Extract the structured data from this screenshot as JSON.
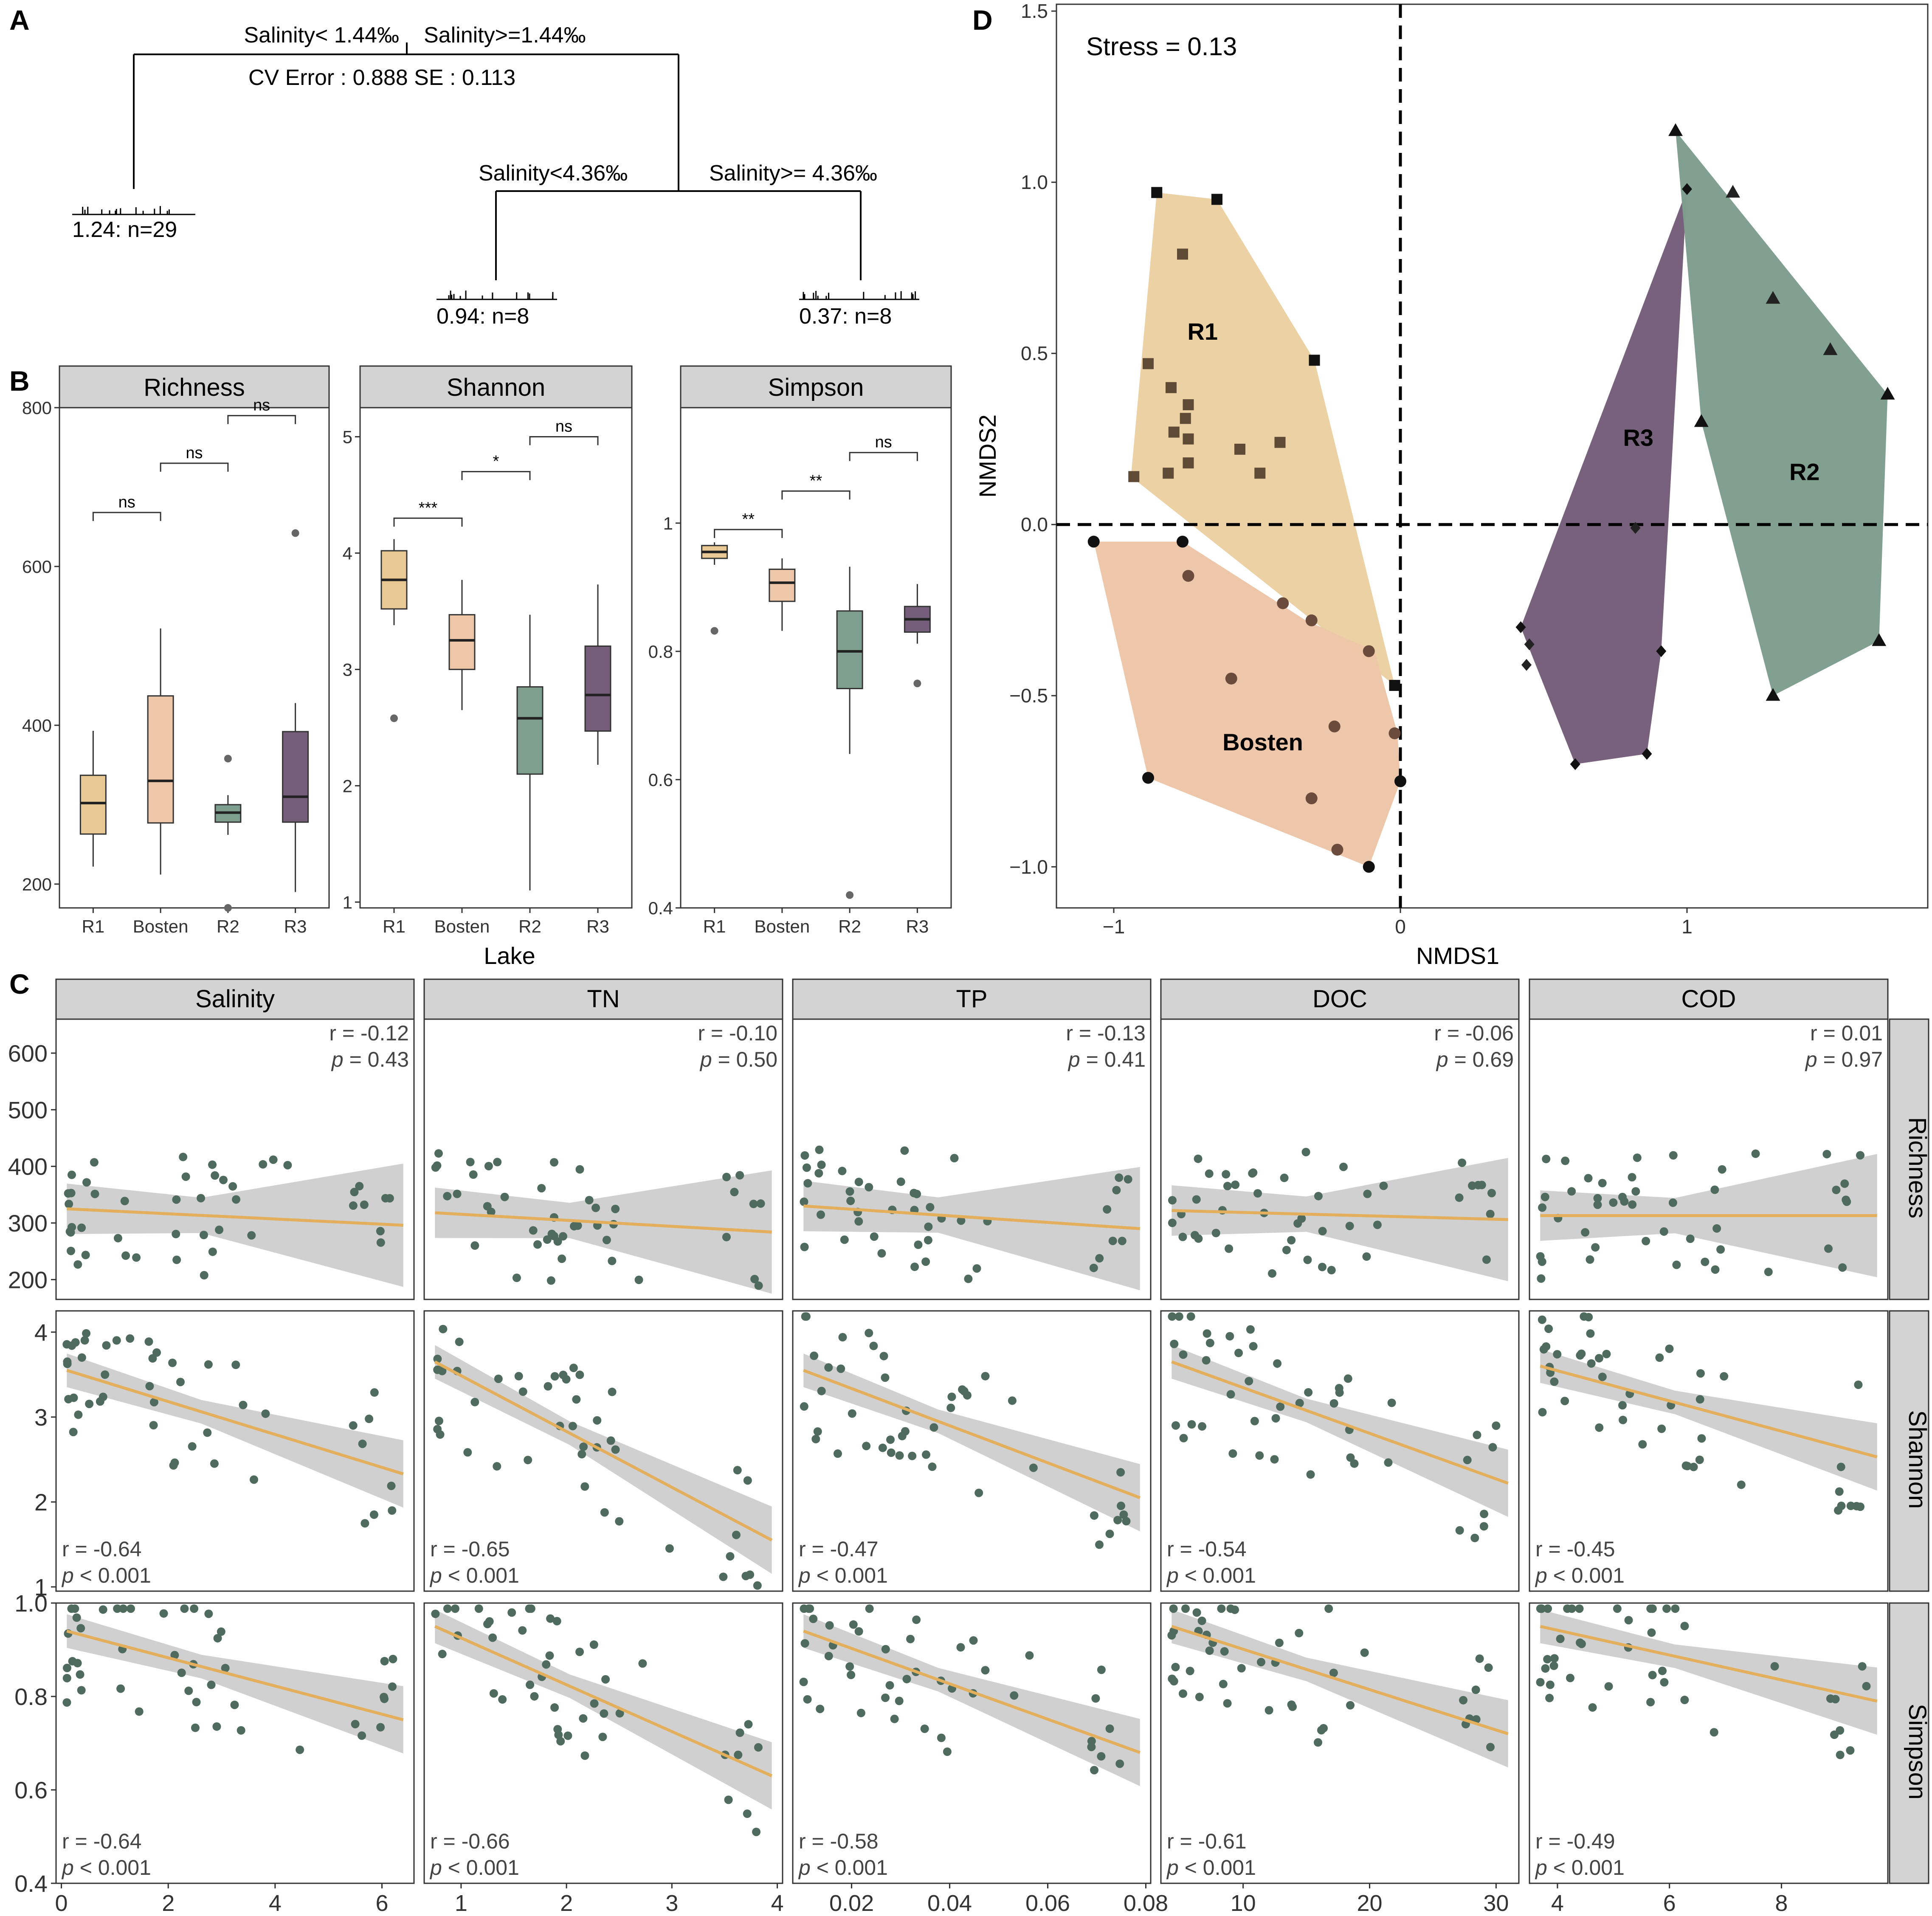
{
  "colors": {
    "R1": "#E8C994",
    "Bosten": "#EEC6A8",
    "R2": "#7E9E8E",
    "R3": "#755E7A",
    "dot": "#4F6B5D",
    "fit": "#E3AF5C",
    "band": "#CBCBCB",
    "strip": "#D3D3D3"
  },
  "labels": {
    "A": "A",
    "B": "B",
    "C": "C",
    "D": "D"
  },
  "tree": {
    "split1_left": "Salinity< 1.44‰",
    "split1_right": "Salinity>=1.44‰",
    "cv": "CV Error :  0.888    SE :  0.113",
    "split2_left": "Salinity<4.36‰",
    "split2_right": "Salinity>= 4.36‰",
    "leaf1": "1.24: n=29",
    "leaf2": "0.94: n=8",
    "leaf3": "0.37: n=8"
  },
  "chart_data": [
    {
      "type": "box",
      "id": "B",
      "xlabel": "Lake",
      "categories": [
        "R1",
        "Bosten",
        "R2",
        "R3"
      ],
      "panels": [
        {
          "title": "Richness",
          "ylim": [
            170,
            800
          ],
          "ticks": [
            200,
            400,
            600,
            800
          ],
          "boxes": [
            {
              "min": 222,
              "q1": 263,
              "median": 302,
              "q3": 337,
              "max": 393,
              "out": []
            },
            {
              "min": 212,
              "q1": 277,
              "median": 330,
              "q3": 437,
              "max": 522,
              "out": []
            },
            {
              "min": 262,
              "q1": 278,
              "median": 290,
              "q3": 300,
              "max": 312,
              "out": [
                358,
                170
              ]
            },
            {
              "min": 190,
              "q1": 278,
              "median": 310,
              "q3": 392,
              "max": 428,
              "out": [
                642
              ]
            }
          ],
          "brackets": [
            {
              "a": 0,
              "b": 1,
              "y": 668,
              "label": "ns"
            },
            {
              "a": 1,
              "b": 2,
              "y": 730,
              "label": "ns"
            },
            {
              "a": 2,
              "b": 3,
              "y": 790,
              "label": "ns"
            }
          ]
        },
        {
          "title": "Shannon",
          "ylim": [
            0.95,
            5.25
          ],
          "ticks": [
            1,
            2,
            3,
            4,
            5
          ],
          "boxes": [
            {
              "min": 3.38,
              "q1": 3.52,
              "median": 3.77,
              "q3": 4.02,
              "max": 4.12,
              "out": [
                2.58
              ]
            },
            {
              "min": 2.65,
              "q1": 3.0,
              "median": 3.25,
              "q3": 3.47,
              "max": 3.77,
              "out": []
            },
            {
              "min": 1.1,
              "q1": 2.1,
              "median": 2.58,
              "q3": 2.85,
              "max": 3.47,
              "out": []
            },
            {
              "min": 2.18,
              "q1": 2.47,
              "median": 2.78,
              "q3": 3.2,
              "max": 3.73,
              "out": []
            }
          ],
          "brackets": [
            {
              "a": 0,
              "b": 1,
              "y": 4.3,
              "label": "***"
            },
            {
              "a": 1,
              "b": 2,
              "y": 4.7,
              "label": "*"
            },
            {
              "a": 2,
              "b": 3,
              "y": 5.0,
              "label": "ns"
            }
          ]
        },
        {
          "title": "Simpson",
          "ylim": [
            0.4,
            1.18
          ],
          "ticks": [
            0.4,
            0.6,
            0.8,
            1.0
          ],
          "boxes": [
            {
              "min": 0.935,
              "q1": 0.945,
              "median": 0.955,
              "q3": 0.965,
              "max": 0.97,
              "out": [
                0.832
              ]
            },
            {
              "min": 0.832,
              "q1": 0.878,
              "median": 0.907,
              "q3": 0.928,
              "max": 0.945,
              "out": []
            },
            {
              "min": 0.64,
              "q1": 0.742,
              "median": 0.8,
              "q3": 0.863,
              "max": 0.932,
              "out": [
                0.42
              ]
            },
            {
              "min": 0.812,
              "q1": 0.83,
              "median": 0.85,
              "q3": 0.87,
              "max": 0.905,
              "out": [
                0.75
              ]
            }
          ],
          "brackets": [
            {
              "a": 0,
              "b": 1,
              "y": 0.99,
              "label": "**"
            },
            {
              "a": 1,
              "b": 2,
              "y": 1.05,
              "label": "**"
            },
            {
              "a": 2,
              "b": 3,
              "y": 1.11,
              "label": "ns"
            }
          ]
        }
      ]
    },
    {
      "type": "scatter",
      "id": "D",
      "title": "Stress = 0.13",
      "xlabel": "NMDS1",
      "ylabel": "NMDS2",
      "xlim": [
        -1.2,
        1.84
      ],
      "ylim": [
        -1.12,
        1.52
      ],
      "xticks": [
        -1,
        0,
        1
      ],
      "yticks": [
        -1.0,
        -0.5,
        0.0,
        0.5,
        1.0,
        1.5
      ],
      "groups": [
        {
          "name": "R1",
          "shape": "square",
          "hull": [
            [
              -0.85,
              0.97
            ],
            [
              -0.64,
              0.95
            ],
            [
              -0.3,
              0.48
            ],
            [
              -0.02,
              -0.47
            ],
            [
              -0.94,
              0.14
            ]
          ],
          "points": [
            [
              -0.85,
              0.97
            ],
            [
              -0.64,
              0.95
            ],
            [
              -0.76,
              0.79
            ],
            [
              -0.3,
              0.48
            ],
            [
              -0.88,
              0.47
            ],
            [
              -0.8,
              0.4
            ],
            [
              -0.74,
              0.35
            ],
            [
              -0.75,
              0.31
            ],
            [
              -0.79,
              0.27
            ],
            [
              -0.74,
              0.25
            ],
            [
              -0.56,
              0.22
            ],
            [
              -0.42,
              0.24
            ],
            [
              -0.81,
              0.15
            ],
            [
              -0.49,
              0.15
            ],
            [
              -0.74,
              0.18
            ],
            [
              -0.93,
              0.14
            ],
            [
              -0.02,
              -0.47
            ]
          ]
        },
        {
          "name": "Bosten",
          "shape": "circle",
          "hull": [
            [
              -1.07,
              -0.05
            ],
            [
              -0.76,
              -0.05
            ],
            [
              -0.33,
              -0.28
            ],
            [
              -0.09,
              -0.37
            ],
            [
              -0.01,
              -0.61
            ],
            [
              0.0,
              -0.75
            ],
            [
              -0.11,
              -1.0
            ],
            [
              -0.88,
              -0.74
            ]
          ],
          "points": [
            [
              -1.07,
              -0.05
            ],
            [
              -0.76,
              -0.05
            ],
            [
              -0.74,
              -0.15
            ],
            [
              -0.41,
              -0.23
            ],
            [
              -0.31,
              -0.28
            ],
            [
              -0.11,
              -0.37
            ],
            [
              -0.59,
              -0.45
            ],
            [
              -0.23,
              -0.59
            ],
            [
              -0.02,
              -0.61
            ],
            [
              0.0,
              -0.75
            ],
            [
              -0.31,
              -0.8
            ],
            [
              -0.22,
              -0.95
            ],
            [
              -0.11,
              -1.0
            ],
            [
              -0.88,
              -0.74
            ]
          ]
        },
        {
          "name": "R3",
          "shape": "diamond",
          "hull": [
            [
              1.0,
              0.98
            ],
            [
              0.91,
              -0.37
            ],
            [
              0.86,
              -0.67
            ],
            [
              0.61,
              -0.7
            ],
            [
              0.42,
              -0.3
            ]
          ],
          "points": [
            [
              1.0,
              0.98
            ],
            [
              0.82,
              -0.01
            ],
            [
              0.91,
              -0.37
            ],
            [
              0.86,
              -0.67
            ],
            [
              0.61,
              -0.7
            ],
            [
              0.42,
              -0.3
            ],
            [
              0.45,
              -0.35
            ],
            [
              0.44,
              -0.41
            ]
          ]
        },
        {
          "name": "R2",
          "shape": "triangle",
          "hull": [
            [
              0.96,
              1.15
            ],
            [
              1.7,
              0.38
            ],
            [
              1.67,
              -0.34
            ],
            [
              1.3,
              -0.5
            ],
            [
              1.05,
              0.3
            ]
          ],
          "points": [
            [
              0.96,
              1.15
            ],
            [
              1.16,
              0.97
            ],
            [
              1.3,
              0.66
            ],
            [
              1.5,
              0.51
            ],
            [
              1.7,
              0.38
            ],
            [
              1.05,
              0.3
            ],
            [
              1.67,
              -0.34
            ],
            [
              1.3,
              -0.5
            ]
          ]
        }
      ]
    },
    {
      "type": "scatter-regression",
      "id": "C",
      "columns": [
        {
          "title": "Salinity",
          "xlim": [
            -0.1,
            6.6
          ],
          "xticks": [
            0,
            2,
            4,
            6
          ]
        },
        {
          "title": "TN",
          "xlim": [
            0.65,
            4.05
          ],
          "xticks": [
            1,
            2,
            3,
            4
          ]
        },
        {
          "title": "TP",
          "xlim": [
            0.008,
            0.081
          ],
          "xticks": [
            0.02,
            0.04,
            0.06,
            0.08
          ]
        },
        {
          "title": "DOC",
          "xlim": [
            3.5,
            31.8
          ],
          "xticks": [
            10,
            20,
            30
          ]
        },
        {
          "title": "COD",
          "xlim": [
            3.5,
            9.9
          ],
          "xticks": [
            4,
            6,
            8
          ]
        }
      ],
      "rows": [
        {
          "title": "Richness",
          "ylim": [
            165,
            660
          ],
          "yticks": [
            200,
            300,
            400,
            500,
            600
          ],
          "corner": "top-right",
          "stats": [
            {
              "r": "r = -0.12",
              "p": " = 0.43"
            },
            {
              "r": "r = -0.10",
              "p": " = 0.50"
            },
            {
              "r": "r = -0.13",
              "p": " = 0.41"
            },
            {
              "r": "r = -0.06",
              "p": " = 0.69"
            },
            {
              "r": "r = 0.01",
              "p": " = 0.97"
            }
          ],
          "fit": [
            [
              325,
              296
            ],
            [
              318,
              284
            ],
            [
              330,
              290
            ],
            [
              322,
              306
            ],
            [
              313,
              313
            ]
          ]
        },
        {
          "title": "Shannon",
          "ylim": [
            0.95,
            4.25
          ],
          "yticks": [
            1,
            2,
            3,
            4
          ],
          "corner": "bottom-left",
          "stats": [
            {
              "r": "r = -0.64",
              "p": " < 0.001"
            },
            {
              "r": "r = -0.65",
              "p": " < 0.001"
            },
            {
              "r": "r = -0.47",
              "p": " < 0.001"
            },
            {
              "r": "r = -0.54",
              "p": " < 0.001"
            },
            {
              "r": "r = -0.45",
              "p": " < 0.001"
            }
          ],
          "fit": [
            [
              3.55,
              2.33
            ],
            [
              3.65,
              1.55
            ],
            [
              3.55,
              2.05
            ],
            [
              3.65,
              2.22
            ],
            [
              3.6,
              2.53
            ]
          ]
        },
        {
          "title": "Simpson",
          "ylim": [
            0.4,
            1.0
          ],
          "yticks": [
            0.4,
            0.6,
            0.8,
            1.0
          ],
          "corner": "bottom-left",
          "stats": [
            {
              "r": "r = -0.64",
              "p": " < 0.001"
            },
            {
              "r": "r = -0.66",
              "p": " < 0.001"
            },
            {
              "r": "r = -0.58",
              "p": " < 0.001"
            },
            {
              "r": "r = -0.61",
              "p": " < 0.001"
            },
            {
              "r": "r = -0.49",
              "p": " < 0.001"
            }
          ],
          "fit": [
            [
              0.94,
              0.75
            ],
            [
              0.95,
              0.63
            ],
            [
              0.94,
              0.68
            ],
            [
              0.95,
              0.72
            ],
            [
              0.95,
              0.79
            ]
          ]
        }
      ],
      "p_symbol": "p"
    }
  ]
}
